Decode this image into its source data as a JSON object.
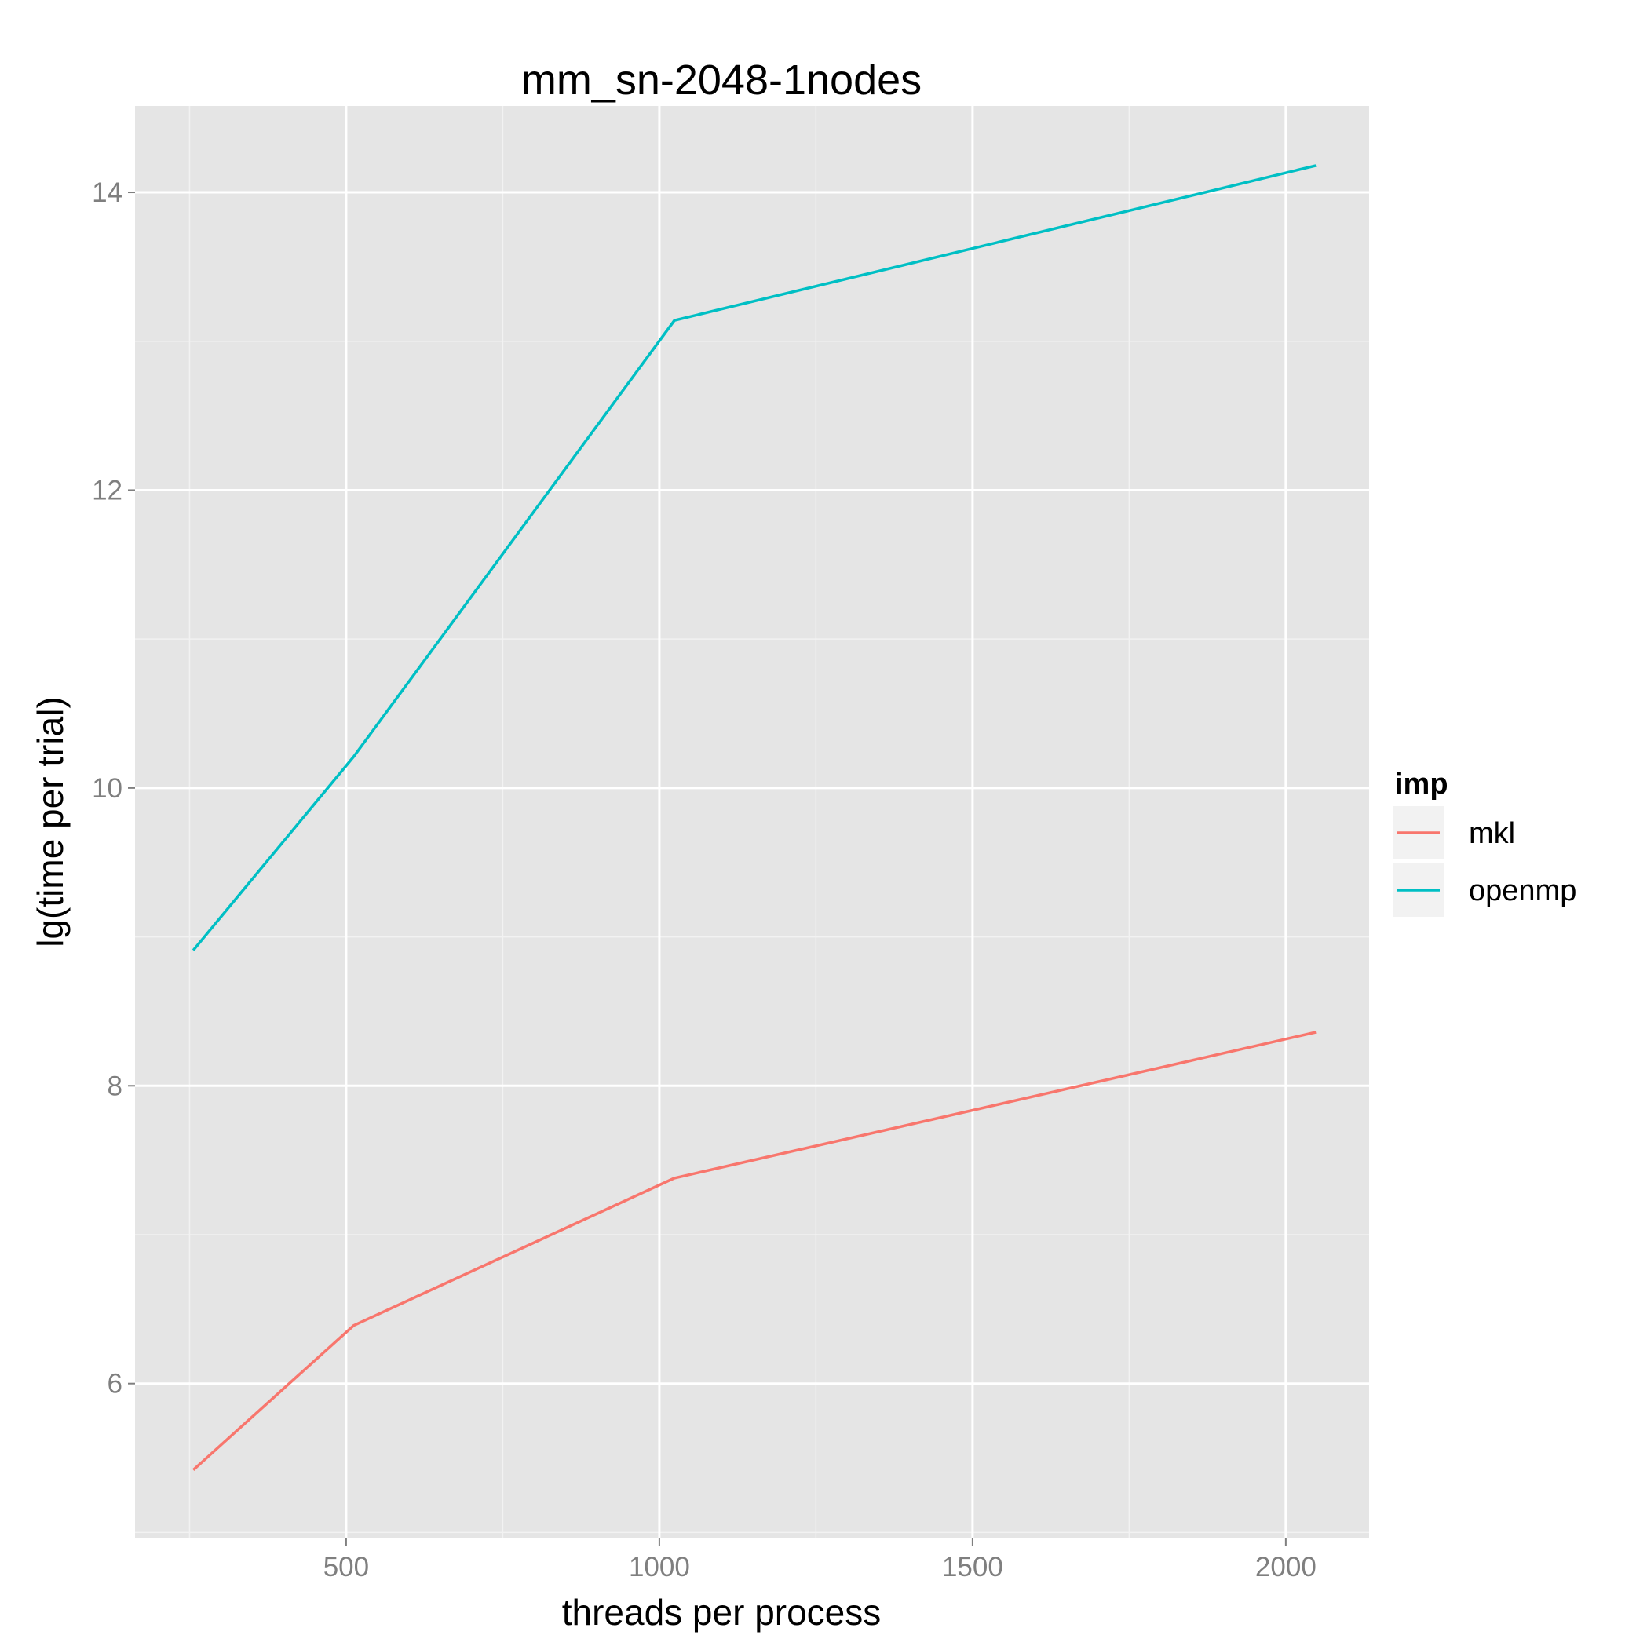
{
  "chart_data": {
    "type": "line",
    "title": "mm_sn-2048-1nodes",
    "xlabel": "threads per process",
    "ylabel": "lg(time per trial)",
    "xlim": [
      163,
      2133
    ],
    "ylim": [
      4.96,
      14.58
    ],
    "x_ticks": [
      500,
      1000,
      1500,
      2000
    ],
    "x_tick_labels": [
      "500",
      "1000",
      "1500",
      "2000"
    ],
    "x_minor_ticks": [
      250,
      750,
      1250,
      1750
    ],
    "y_ticks": [
      6,
      8,
      10,
      12,
      14
    ],
    "y_tick_labels": [
      "6",
      "8",
      "10",
      "12",
      "14"
    ],
    "y_minor_ticks": [
      5,
      7,
      9,
      11,
      13
    ],
    "grid": true,
    "legend": {
      "title": "imp",
      "position": "right"
    },
    "series": [
      {
        "name": "mkl",
        "color": "#F8766D",
        "x": [
          256,
          512,
          1024,
          2048
        ],
        "y": [
          5.42,
          6.39,
          7.38,
          8.36
        ]
      },
      {
        "name": "openmp",
        "color": "#00BFC4",
        "x": [
          256,
          512,
          1024,
          2048
        ],
        "y": [
          8.91,
          10.21,
          13.14,
          14.18
        ]
      }
    ]
  }
}
